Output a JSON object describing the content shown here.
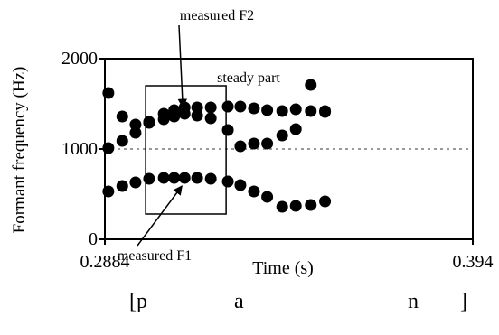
{
  "chart_data": {
    "type": "scatter",
    "title": "",
    "xlabel": "Time (s)",
    "ylabel": "Formant frequency (Hz)",
    "xlim": [
      0.2884,
      0.394
    ],
    "ylim": [
      0,
      2000
    ],
    "x_tick_labels": [
      "0.2884",
      "0.394"
    ],
    "y_tick_labels": [
      "0",
      "1000",
      "2000"
    ],
    "reference_line_y": 1000,
    "grid": false,
    "series": [
      {
        "values": [
          [
            0.2894,
            530
          ],
          [
            0.2934,
            590
          ],
          [
            0.2972,
            630
          ],
          [
            0.3011,
            670
          ],
          [
            0.3053,
            680
          ],
          [
            0.3083,
            680
          ],
          [
            0.3113,
            680
          ],
          [
            0.3149,
            680
          ],
          [
            0.3188,
            670
          ],
          [
            0.3237,
            640
          ],
          [
            0.3273,
            600
          ],
          [
            0.3312,
            530
          ],
          [
            0.335,
            470
          ],
          [
            0.3393,
            360
          ],
          [
            0.3432,
            370
          ],
          [
            0.3475,
            380
          ],
          [
            0.3516,
            420
          ]
        ]
      },
      {
        "values": [
          [
            0.2894,
            1010
          ],
          [
            0.2934,
            1090
          ],
          [
            0.2972,
            1180
          ],
          [
            0.3011,
            1290
          ],
          [
            0.3053,
            1330
          ],
          [
            0.3083,
            1360
          ],
          [
            0.3113,
            1390
          ],
          [
            0.3149,
            1370
          ],
          [
            0.3188,
            1340
          ],
          [
            0.3237,
            1210
          ],
          [
            0.3273,
            1030
          ],
          [
            0.3312,
            1060
          ],
          [
            0.335,
            1060
          ],
          [
            0.3393,
            1150
          ],
          [
            0.3432,
            1220
          ],
          [
            0.3475,
            1420
          ],
          [
            0.3516,
            1420
          ]
        ]
      },
      {
        "values": [
          [
            0.2894,
            1620
          ],
          [
            0.2934,
            1360
          ],
          [
            0.2972,
            1270
          ],
          [
            0.3011,
            1300
          ],
          [
            0.3053,
            1390
          ],
          [
            0.3083,
            1430
          ],
          [
            0.3113,
            1460
          ],
          [
            0.3149,
            1460
          ],
          [
            0.3188,
            1460
          ],
          [
            0.3237,
            1470
          ],
          [
            0.3273,
            1470
          ],
          [
            0.3312,
            1450
          ],
          [
            0.335,
            1430
          ],
          [
            0.3393,
            1420
          ],
          [
            0.3432,
            1440
          ],
          [
            0.3475,
            1710
          ],
          [
            0.3516,
            1410
          ]
        ]
      }
    ],
    "annotations": {
      "box_label": "steady part",
      "box_x": [
        0.3001,
        0.3232
      ],
      "box_y": [
        280,
        1700
      ],
      "f2_label": "measured F2",
      "f2_arrow_target": [
        0.3113,
        1420
      ],
      "f1_label": "measured F1",
      "f1_arrow_target": [
        0.3113,
        640
      ]
    }
  },
  "phonetic": {
    "open": "[p",
    "a": "a",
    "n": "n",
    "close": "]"
  }
}
